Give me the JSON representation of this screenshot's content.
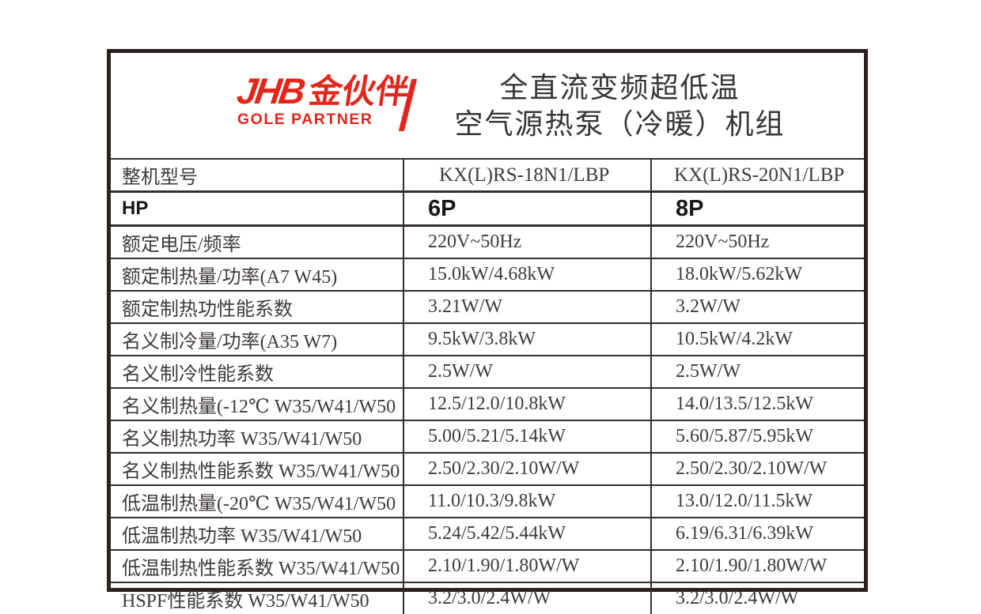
{
  "brand": {
    "acronym": "JHB",
    "name_cn": "金伙伴",
    "name_en": "GOLE PARTNER",
    "color": "#e2261c"
  },
  "title": {
    "line1": "全直流变频超低温",
    "line2": "空气源热泵（冷暖）机组"
  },
  "table": {
    "rows": [
      {
        "label": "整机型号",
        "c1": "KX(L)RS-18N1/LBP",
        "c2": "KX(L)RS-20N1/LBP",
        "style": "model"
      },
      {
        "label": "HP",
        "c1": "6P",
        "c2": "8P",
        "style": "hp"
      },
      {
        "label": "额定电压/频率",
        "c1": "220V~50Hz",
        "c2": "220V~50Hz"
      },
      {
        "label": "额定制热量/功率(A7 W45)",
        "c1": "15.0kW/4.68kW",
        "c2": "18.0kW/5.62kW"
      },
      {
        "label": "额定制热功性能系数",
        "c1": "3.21W/W",
        "c2": "3.2W/W"
      },
      {
        "label": "名义制冷量/功率(A35 W7)",
        "c1": "9.5kW/3.8kW",
        "c2": "10.5kW/4.2kW"
      },
      {
        "label": "名义制冷性能系数",
        "c1": "2.5W/W",
        "c2": "2.5W/W"
      },
      {
        "label": "名义制热量(-12℃ W35/W41/W50",
        "c1": "12.5/12.0/10.8kW",
        "c2": "14.0/13.5/12.5kW"
      },
      {
        "label": "名义制热功率 W35/W41/W50",
        "c1": "5.00/5.21/5.14kW",
        "c2": "5.60/5.87/5.95kW"
      },
      {
        "label": "名义制热性能系数 W35/W41/W50",
        "c1": "2.50/2.30/2.10W/W",
        "c2": "2.50/2.30/2.10W/W"
      },
      {
        "label": "低温制热量(-20℃ W35/W41/W50",
        "c1": "11.0/10.3/9.8kW",
        "c2": "13.0/12.0/11.5kW"
      },
      {
        "label": "低温制热功率 W35/W41/W50",
        "c1": "5.24/5.42/5.44kW",
        "c2": "6.19/6.31/6.39kW"
      },
      {
        "label": "低温制热性能系数 W35/W41/W50",
        "c1": "2.10/1.90/1.80W/W",
        "c2": "2.10/1.90/1.80W/W"
      },
      {
        "label": "HSPF性能系数 W35/W41/W50",
        "c1": "3.2/3.0/2.4W/W",
        "c2": "3.2/3.0/2.4W/W"
      }
    ]
  }
}
